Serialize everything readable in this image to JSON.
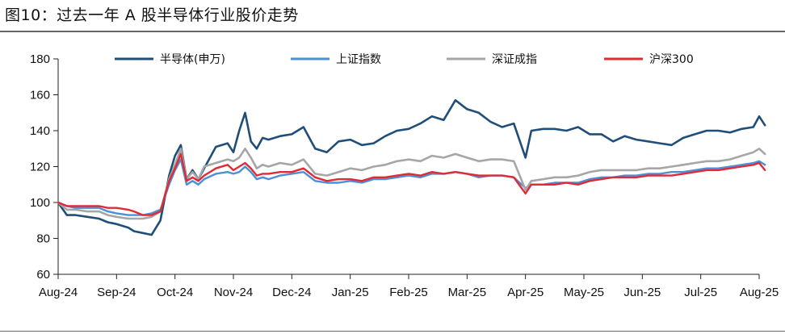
{
  "title": "图10：过去一年 A 股半导体行业股价走势",
  "chart_data": {
    "type": "line",
    "ylim": [
      60,
      180
    ],
    "yticks": [
      60,
      80,
      100,
      120,
      140,
      160,
      180
    ],
    "xticks": [
      "Aug-24",
      "Sep-24",
      "Oct-24",
      "Nov-24",
      "Dec-24",
      "Jan-25",
      "Feb-25",
      "Mar-25",
      "Apr-25",
      "May-25",
      "Jun-25",
      "Jul-25",
      "Aug-25"
    ],
    "grid": false,
    "legend_position": "top",
    "x_index": [
      0,
      0.15,
      0.3,
      0.5,
      0.7,
      0.85,
      1.0,
      1.2,
      1.3,
      1.45,
      1.6,
      1.75,
      1.9,
      2.0,
      2.1,
      2.2,
      2.3,
      2.4,
      2.5,
      2.7,
      2.9,
      3.0,
      3.1,
      3.2,
      3.3,
      3.4,
      3.5,
      3.6,
      3.8,
      4.0,
      4.2,
      4.4,
      4.6,
      4.8,
      5.0,
      5.2,
      5.4,
      5.6,
      5.8,
      6.0,
      6.2,
      6.4,
      6.6,
      6.8,
      7.0,
      7.2,
      7.4,
      7.6,
      7.8,
      8.0,
      8.1,
      8.3,
      8.5,
      8.7,
      8.9,
      9.1,
      9.3,
      9.5,
      9.7,
      9.9,
      10.1,
      10.3,
      10.5,
      10.7,
      10.9,
      11.1,
      11.3,
      11.5,
      11.7,
      11.9,
      12.0,
      12.1
    ],
    "series": [
      {
        "name": "半导体(申万)",
        "color": "#1f4e79",
        "width": 2.6,
        "values": [
          100,
          93,
          93,
          92,
          91,
          89,
          88,
          86,
          84,
          83,
          82,
          90,
          115,
          126,
          132,
          113,
          118,
          113,
          119,
          131,
          133,
          128,
          140,
          150,
          134,
          130,
          136,
          135,
          137,
          138,
          142,
          130,
          128,
          134,
          135,
          132,
          133,
          137,
          140,
          141,
          144,
          148,
          146,
          157,
          152,
          150,
          145,
          142,
          144,
          125,
          140,
          141,
          141,
          140,
          142,
          138,
          138,
          134,
          137,
          135,
          134,
          133,
          132,
          136,
          138,
          140,
          140,
          139,
          141,
          142,
          148,
          143
        ]
      },
      {
        "name": "上证指数",
        "color": "#4d8fd6",
        "width": 2.4,
        "values": [
          100,
          98,
          97,
          97,
          97,
          95,
          94,
          93,
          93,
          93,
          94,
          96,
          110,
          118,
          124,
          110,
          112,
          110,
          113,
          116,
          117,
          116,
          117,
          120,
          117,
          113,
          114,
          113,
          115,
          116,
          117,
          112,
          111,
          111,
          112,
          111,
          113,
          113,
          114,
          115,
          114,
          116,
          116,
          117,
          116,
          114,
          115,
          115,
          114,
          108,
          110,
          110,
          111,
          111,
          111,
          113,
          114,
          114,
          115,
          115,
          116,
          116,
          117,
          117,
          118,
          119,
          119,
          120,
          121,
          122,
          123,
          121
        ]
      },
      {
        "name": "深证成指",
        "color": "#a6a6a6",
        "width": 2.6,
        "values": [
          100,
          96,
          96,
          95,
          95,
          93,
          92,
          91,
          91,
          91,
          92,
          95,
          113,
          121,
          130,
          113,
          117,
          113,
          120,
          122,
          124,
          123,
          125,
          130,
          125,
          119,
          121,
          120,
          122,
          121,
          124,
          116,
          115,
          117,
          119,
          118,
          120,
          121,
          123,
          124,
          123,
          126,
          125,
          127,
          125,
          123,
          124,
          124,
          123,
          107,
          112,
          113,
          114,
          114,
          115,
          117,
          118,
          118,
          118,
          118,
          119,
          119,
          120,
          121,
          122,
          123,
          123,
          124,
          126,
          128,
          130,
          127
        ]
      },
      {
        "name": "沪深300",
        "color": "#e02b35",
        "width": 2.4,
        "values": [
          100,
          98,
          98,
          98,
          98,
          97,
          97,
          96,
          95,
          93,
          93,
          95,
          112,
          119,
          127,
          112,
          114,
          112,
          115,
          119,
          121,
          118,
          120,
          122,
          119,
          115,
          116,
          116,
          117,
          117,
          119,
          114,
          112,
          113,
          113,
          112,
          114,
          114,
          115,
          116,
          115,
          117,
          116,
          117,
          116,
          115,
          115,
          115,
          114,
          105,
          110,
          110,
          110,
          111,
          110,
          112,
          113,
          114,
          114,
          114,
          115,
          115,
          115,
          116,
          117,
          118,
          118,
          119,
          120,
          121,
          122,
          118
        ]
      }
    ]
  }
}
